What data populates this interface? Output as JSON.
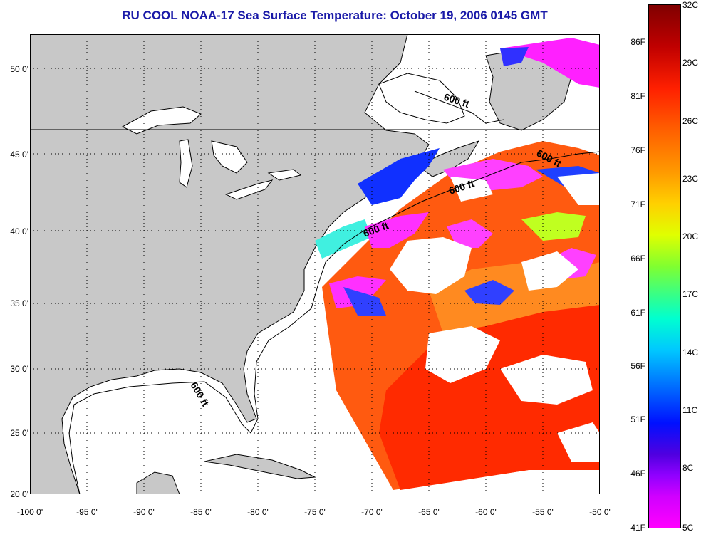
{
  "title": "RU COOL  NOAA-17  Sea Surface Temperature:  October 19, 2006 0145 GMT",
  "y_ticks": [
    "50 0'",
    "45 0'",
    "40 0'",
    "35 0'",
    "30 0'",
    "25 0'",
    "20 0'"
  ],
  "x_ticks": [
    "-100 0'",
    "-95 0'",
    "-90 0'",
    "-85 0'",
    "-80 0'",
    "-75 0'",
    "-70 0'",
    "-65 0'",
    "-60 0'",
    "-55 0'",
    "-50 0'"
  ],
  "contour_labels": [
    "600 ft",
    "600 ft",
    "600 ft",
    "600 ft",
    "600 ft"
  ],
  "colorbar": {
    "fahrenheit": [
      "86F",
      "81F",
      "76F",
      "71F",
      "66F",
      "61F",
      "56F",
      "51F",
      "46F",
      "41F"
    ],
    "celsius": [
      "32C",
      "29C",
      "26C",
      "23C",
      "20C",
      "17C",
      "14C",
      "11C",
      "8C",
      "5C"
    ]
  },
  "colors": {
    "land": "#c8c8c8",
    "title": "#1a1aa8",
    "cloud": "#ffffff"
  }
}
